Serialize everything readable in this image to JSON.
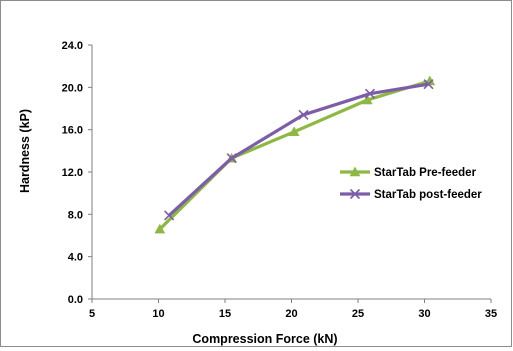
{
  "chart_data": {
    "type": "line",
    "title": "",
    "xlabel": "Compression Force (kN)",
    "ylabel": "Hardness (kP)",
    "xlim": [
      5,
      35
    ],
    "ylim": [
      0,
      24
    ],
    "xticks": [
      5,
      10,
      15,
      20,
      25,
      30,
      35
    ],
    "xtick_labels": [
      "5",
      "10",
      "15",
      "20",
      "25",
      "30",
      "35"
    ],
    "yticks": [
      0,
      4,
      8,
      12,
      16,
      20,
      24
    ],
    "ytick_labels": [
      "0.0",
      "4.0",
      "8.0",
      "12.0",
      "16.0",
      "20.0",
      "24.0"
    ],
    "grid": false,
    "legend_position": "right",
    "series": [
      {
        "name": "StarTab Pre-feeder",
        "color": "#8db843",
        "marker": "triangle",
        "x": [
          10.1,
          15.5,
          20.2,
          25.7,
          30.4
        ],
        "y": [
          6.6,
          13.3,
          15.8,
          18.8,
          20.6
        ]
      },
      {
        "name": "StarTab post-feeder",
        "color": "#7d5da8",
        "marker": "x",
        "x": [
          10.8,
          15.5,
          20.9,
          25.9,
          30.3
        ],
        "y": [
          7.9,
          13.3,
          17.4,
          19.4,
          20.3
        ]
      }
    ]
  }
}
